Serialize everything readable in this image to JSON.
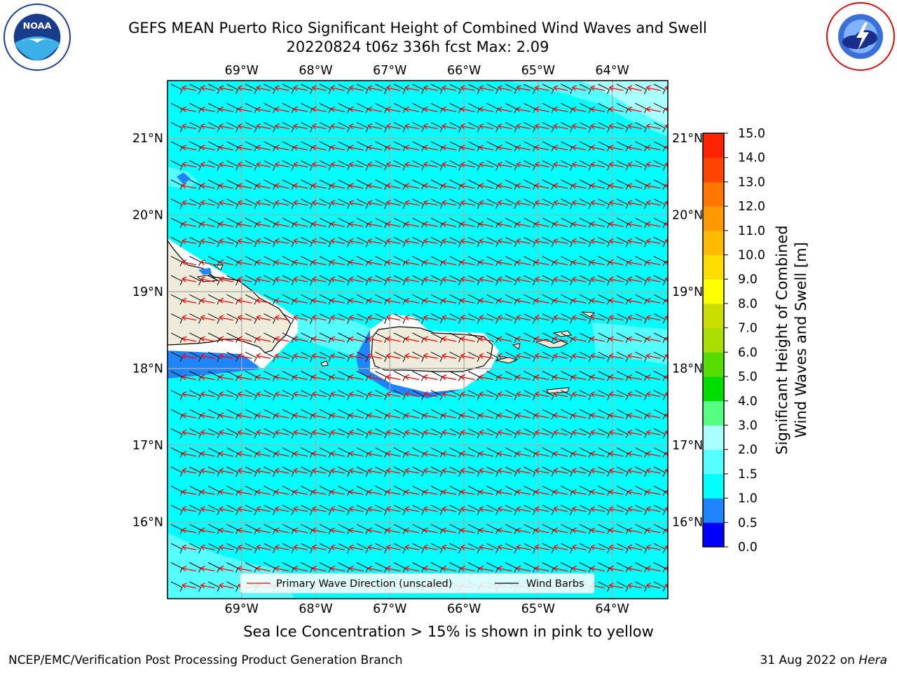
{
  "title": {
    "line1": "GEFS MEAN Puerto Rico Significant Height of Combined Wind Waves and Swell",
    "line2": "20220824 t06z 336h fcst   Max: 2.09"
  },
  "logos": {
    "left": "NOAA",
    "left_ring_text": "NATIONAL OCEANIC AND ATMOSPHERIC ADMINISTRATION · U.S. DEPARTMENT OF COMMERCE",
    "right_ring_text": "NATIONAL WEATHER SERVICE"
  },
  "map": {
    "lon_labels": [
      "69°W",
      "68°W",
      "67°W",
      "66°W",
      "65°W",
      "64°W"
    ],
    "lat_labels": [
      "21°N",
      "20°N",
      "19°N",
      "18°N",
      "17°N",
      "16°N"
    ],
    "lon_range": [
      -70.0,
      -63.25
    ],
    "lat_range": [
      15.0,
      21.75
    ],
    "lon_ticks": [
      -69,
      -68,
      -67,
      -66,
      -65,
      -64
    ],
    "lat_ticks": [
      21,
      20,
      19,
      18,
      17,
      16
    ],
    "legend": {
      "primary": "Primary Wave Direction (unscaled)",
      "barbs": "Wind Barbs"
    },
    "colors": {
      "water_main": "#00ffff",
      "water_light": "#55ffff",
      "water_lighter": "#aaffff",
      "water_blue": "#1e85ff",
      "land": "#efebdb",
      "coast_white": "#ffffff",
      "arrow": "#ff0000",
      "barb": "#000000"
    }
  },
  "colorbar": {
    "label_line1": "Significant Height of Combined",
    "label_line2": "Wind Waves and Swell [m]",
    "levels": [
      "0.0",
      "0.5",
      "1.0",
      "1.5",
      "2.0",
      "3.0",
      "4.0",
      "5.0",
      "6.0",
      "7.0",
      "8.0",
      "9.0",
      "10.0",
      "11.0",
      "12.0",
      "13.0",
      "14.0",
      "15.0"
    ],
    "colors": [
      "#0000ff",
      "#1e85ff",
      "#00ffff",
      "#55ffff",
      "#aaffff",
      "#55ff7f",
      "#00dd00",
      "#55dd00",
      "#aadd00",
      "#ccdd00",
      "#ffff00",
      "#ffdd00",
      "#ffbb00",
      "#ff9900",
      "#ff7700",
      "#ff4400",
      "#ff2200"
    ]
  },
  "sea_ice_note": "Sea Ice Concentration > 15% is shown in pink to yellow",
  "footer": {
    "left": "NCEP/EMC/Verification Post Processing Product Generation Branch",
    "right_prefix": "31 Aug 2022 on ",
    "right_host": "Hera"
  }
}
